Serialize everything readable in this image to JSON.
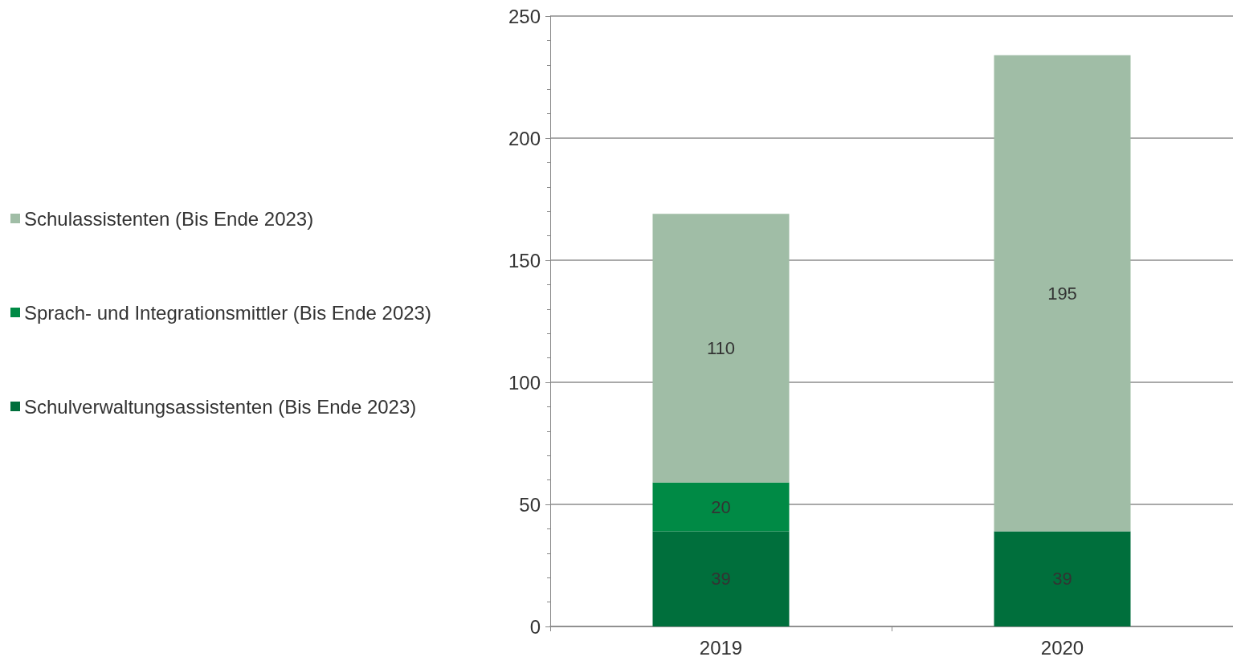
{
  "chart_data": {
    "type": "bar",
    "stacked": true,
    "categories": [
      "2019",
      "2020"
    ],
    "series": [
      {
        "name": "Schulverwaltungsassistenten (Bis Ende 2023)",
        "color": "#006f3c",
        "values": [
          39,
          39
        ]
      },
      {
        "name": "Sprach- und Integrationsmittler (Bis Ende 2023)",
        "color": "#008a45",
        "values": [
          20,
          null
        ]
      },
      {
        "name": "Schulassistenten (Bis Ende 2023)",
        "color": "#a0bda6",
        "values": [
          110,
          195
        ]
      }
    ],
    "ylim": [
      0,
      250
    ],
    "yticks": [
      0,
      50,
      100,
      150,
      200,
      250
    ],
    "grid": "y",
    "legend": "left",
    "data_labels": true
  }
}
